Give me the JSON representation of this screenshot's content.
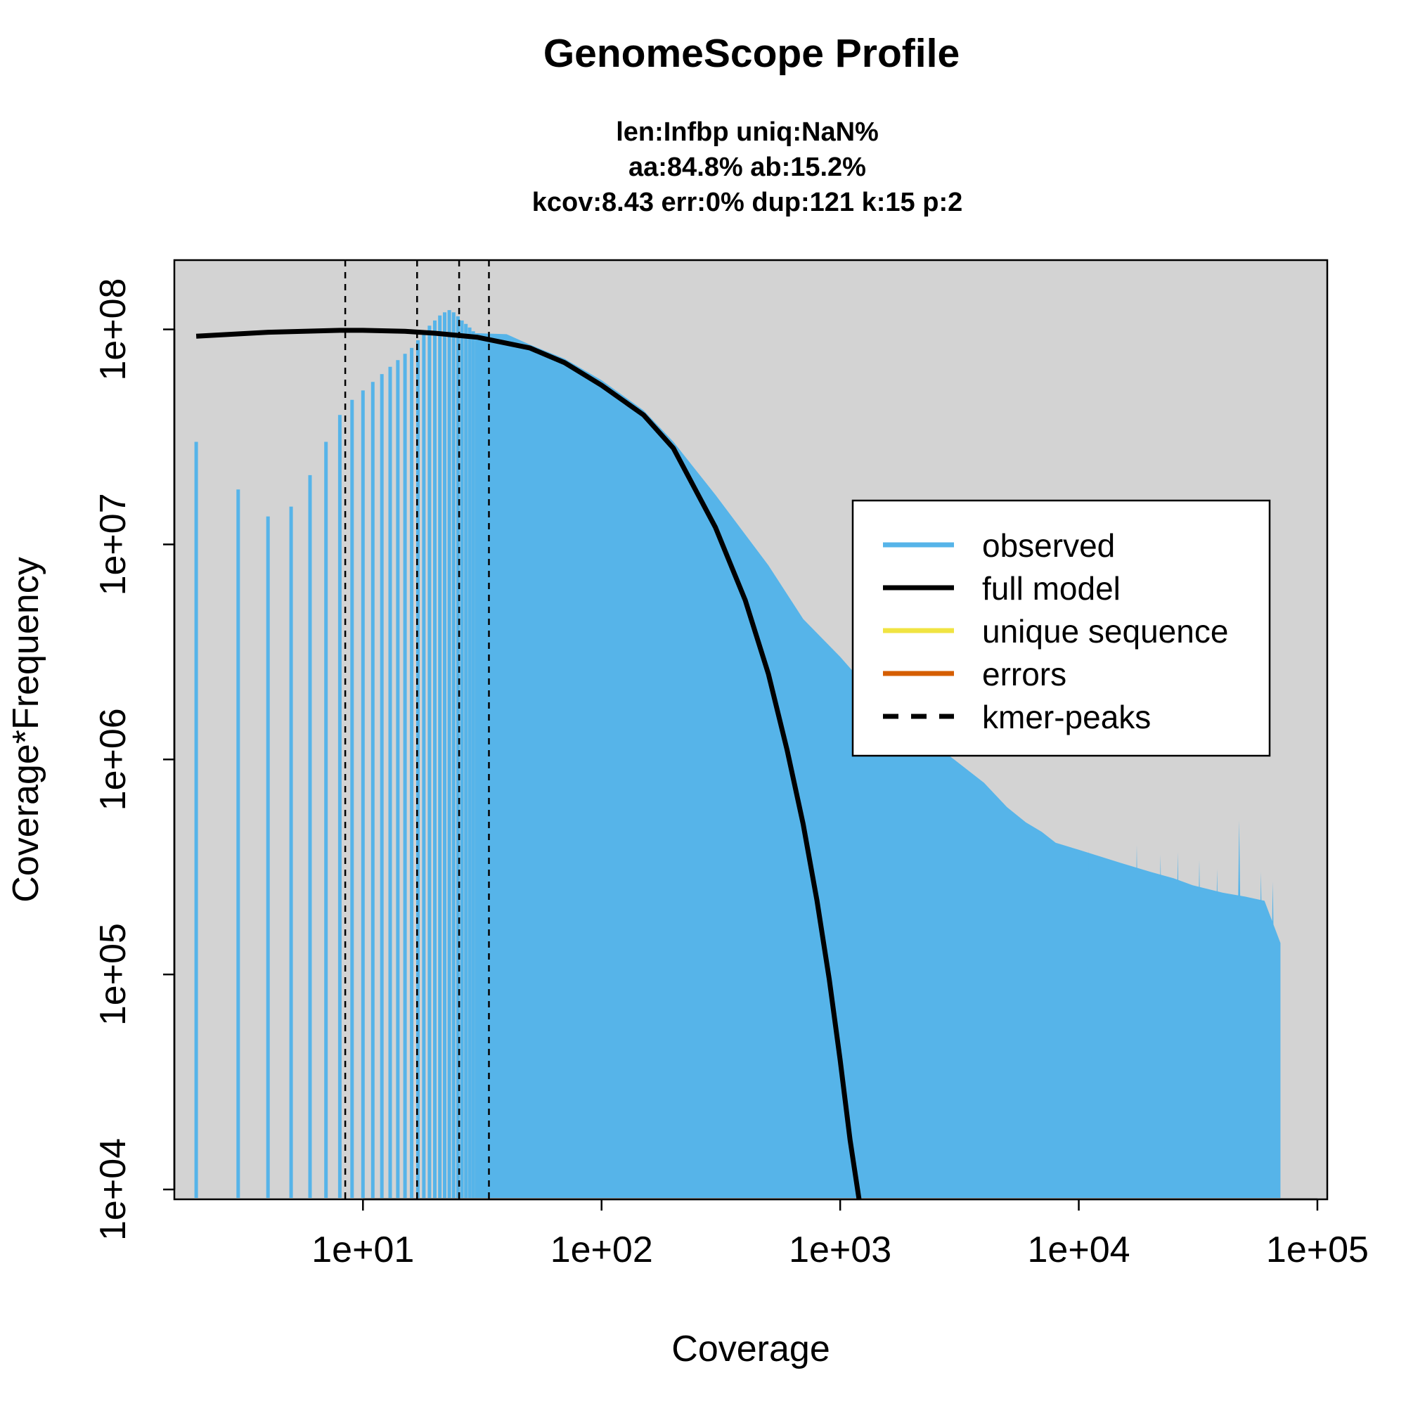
{
  "chart_data": {
    "type": "bar",
    "title": "GenomeScope Profile",
    "subtitle_lines": [
      "len:Infbp uniq:NaN%",
      "aa:84.8% ab:15.2%",
      "kcov:8.43 err:0%  dup:121  k:15 p:2"
    ],
    "xlabel": "Coverage",
    "ylabel": "Coverage*Frequency",
    "x_scale": "log",
    "y_scale": "log",
    "xlim": [
      1.62,
      110000
    ],
    "ylim": [
      9000,
      210000000
    ],
    "x_ticks": [
      10,
      100,
      1000,
      10000,
      100000
    ],
    "x_tick_labels": [
      "1e+01",
      "1e+02",
      "1e+03",
      "1e+04",
      "1e+05"
    ],
    "y_ticks": [
      10000,
      100000,
      1000000,
      10000000,
      100000000
    ],
    "y_tick_labels": [
      "1e+04",
      "1e+05",
      "1e+06",
      "1e+07",
      "1e+08"
    ],
    "background": "#d3d3d3",
    "grid": false,
    "colors": {
      "observed": "#56b4e9",
      "full_model": "#000000",
      "unique_sequence": "#f0e442",
      "errors": "#d55e00",
      "kmer_peaks": "#000000"
    },
    "observed_discrete": {
      "x": [
        2,
        3,
        4,
        5,
        6,
        7,
        8,
        9,
        10,
        11,
        12,
        13,
        14,
        15,
        16,
        17,
        18,
        19,
        20,
        21,
        22,
        23,
        24,
        25,
        26,
        27,
        28,
        29,
        30
      ],
      "y": [
        30000000,
        18000000,
        13500000,
        15000000,
        21000000,
        30000000,
        40000000,
        47000000,
        52000000,
        57000000,
        62000000,
        67000000,
        72000000,
        77000000,
        82000000,
        89000000,
        96000000,
        104000000,
        110000000,
        116000000,
        120000000,
        123000000,
        120000000,
        115000000,
        110000000,
        106000000,
        102000000,
        98000000,
        96000000
      ]
    },
    "observed_envelope": {
      "x": [
        30,
        40,
        50,
        70,
        100,
        150,
        200,
        300,
        500,
        700,
        1000,
        1500,
        2000,
        3000,
        4000,
        5000,
        6000,
        7000,
        8000,
        10000,
        15000,
        20000,
        25000,
        30000,
        40000,
        50000,
        60000,
        70000
      ],
      "y": [
        96000000,
        95000000,
        85000000,
        73000000,
        58000000,
        42000000,
        30000000,
        17000000,
        8000000,
        4500000,
        3000000,
        1800000,
        1400000,
        1000000,
        780000,
        600000,
        510000,
        460000,
        410000,
        380000,
        330000,
        300000,
        280000,
        260000,
        240000,
        230000,
        220000,
        140000
      ]
    },
    "observed_spikes": {
      "x": [
        11000,
        17500,
        22000,
        26000,
        32000,
        38000,
        47000,
        58000,
        65000
      ],
      "y": [
        380000,
        400000,
        360000,
        370000,
        340000,
        310000,
        520000,
        300000,
        270000
      ]
    },
    "full_model": {
      "x": [
        2,
        4,
        8,
        10,
        15,
        20,
        30,
        50,
        70,
        100,
        150,
        200,
        300,
        400,
        500,
        600,
        700,
        800,
        900,
        1000,
        1100,
        1200
      ],
      "y": [
        93000000,
        97000000,
        99000000,
        99000000,
        98000000,
        96000000,
        92000000,
        82000000,
        70000000,
        55000000,
        40000000,
        28000000,
        12000000,
        5500000,
        2500000,
        1100000,
        500000,
        220000,
        95000,
        40000,
        17000,
        9000
      ]
    },
    "kmer_peaks": [
      8.43,
      16.86,
      25.29,
      33.72
    ],
    "legend": {
      "position": "right",
      "items": [
        {
          "label": "observed",
          "color": "#56b4e9",
          "style": "solid"
        },
        {
          "label": "full model",
          "color": "#000000",
          "style": "solid"
        },
        {
          "label": "unique sequence",
          "color": "#f0e442",
          "style": "solid"
        },
        {
          "label": "errors",
          "color": "#d55e00",
          "style": "solid"
        },
        {
          "label": "kmer-peaks",
          "color": "#000000",
          "style": "dashed"
        }
      ]
    }
  }
}
